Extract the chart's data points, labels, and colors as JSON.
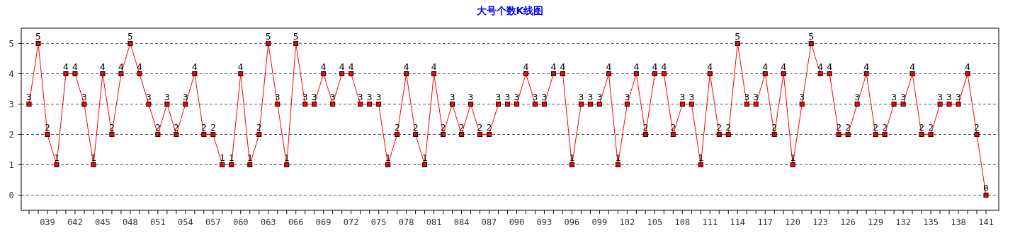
{
  "chart_data": {
    "type": "line",
    "title": "大号个数K线图",
    "categories": [
      null,
      null,
      "039",
      null,
      null,
      "042",
      null,
      null,
      "045",
      null,
      null,
      "048",
      null,
      null,
      "051",
      null,
      null,
      "054",
      null,
      null,
      "057",
      null,
      null,
      "060",
      null,
      null,
      "063",
      null,
      null,
      "066",
      null,
      null,
      "069",
      null,
      null,
      "072",
      null,
      null,
      "075",
      null,
      null,
      "078",
      null,
      null,
      "081",
      null,
      null,
      "084",
      null,
      null,
      "087",
      null,
      null,
      "090",
      null,
      null,
      "093",
      null,
      null,
      "096",
      null,
      null,
      "099",
      null,
      null,
      "102",
      null,
      null,
      "105",
      null,
      null,
      "108",
      null,
      null,
      "111",
      null,
      null,
      "114",
      null,
      null,
      "117",
      null,
      null,
      "120",
      null,
      null,
      "123",
      null,
      null,
      "126",
      null,
      null,
      "129",
      null,
      null,
      "132",
      null,
      null,
      "135",
      null,
      null,
      "138",
      null,
      null,
      "141"
    ],
    "series": [
      {
        "color": "#ff0000",
        "values": [
          3,
          5,
          2,
          1,
          4,
          4,
          3,
          1,
          4,
          2,
          4,
          5,
          4,
          3,
          2,
          3,
          2,
          3,
          4,
          2,
          2,
          1,
          1,
          4,
          1,
          2,
          5,
          3,
          1,
          5,
          3,
          3,
          4,
          3,
          4,
          4,
          3,
          3,
          3,
          1,
          2,
          4,
          2,
          1,
          4,
          2,
          3,
          2,
          3,
          2,
          2,
          3,
          3,
          3,
          4,
          3,
          3,
          4,
          4,
          1,
          3,
          3,
          3,
          4,
          1,
          3,
          4,
          2,
          4,
          4,
          2,
          3,
          3,
          1,
          4,
          2,
          2,
          5,
          3,
          3,
          4,
          2,
          4,
          1,
          3,
          5,
          4,
          4,
          2,
          2,
          3,
          4,
          2,
          2,
          3,
          3,
          4,
          2,
          2,
          3,
          3,
          3,
          4,
          2,
          0
        ]
      }
    ],
    "ylim": [
      -0.5,
      5.5
    ],
    "yticks": [
      0,
      1,
      2,
      3,
      4,
      5
    ],
    "grid": "y",
    "marker": "square",
    "line_style": "solid",
    "data_labels": true
  }
}
